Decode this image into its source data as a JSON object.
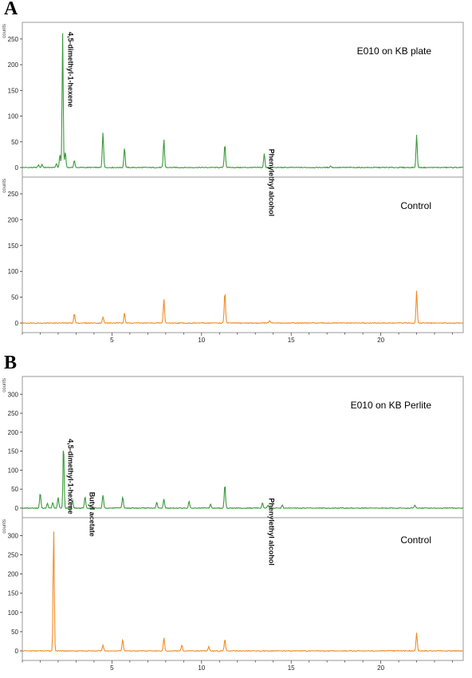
{
  "figure": {
    "panel_a_label": "A",
    "panel_b_label": "B",
    "y_unit": "counts",
    "axis_color": "#333333",
    "sample_color": "#3a9a3a",
    "control_color": "#f08c28"
  },
  "chart_data": [
    {
      "type": "line",
      "panel": "A",
      "label": "E010 on KB plate",
      "color": "#3a9a3a",
      "ylim": [
        0,
        270
      ],
      "yticks": [
        0,
        50,
        100,
        150,
        200,
        250
      ],
      "xlim": [
        0,
        24.6
      ],
      "xticks": [
        5,
        10,
        15,
        20
      ],
      "baseline": 0,
      "peaks": [
        {
          "x": 0.9,
          "y": 5
        },
        {
          "x": 1.1,
          "y": 6
        },
        {
          "x": 1.9,
          "y": 8
        },
        {
          "x": 2.1,
          "y": 25
        },
        {
          "x": 2.25,
          "y": 262
        },
        {
          "x": 2.4,
          "y": 30
        },
        {
          "x": 2.9,
          "y": 14
        },
        {
          "x": 4.5,
          "y": 68
        },
        {
          "x": 5.7,
          "y": 38
        },
        {
          "x": 7.9,
          "y": 55
        },
        {
          "x": 11.3,
          "y": 45
        },
        {
          "x": 13.5,
          "y": 27
        },
        {
          "x": 17.2,
          "y": 3
        },
        {
          "x": 22.0,
          "y": 63
        }
      ],
      "annotations": [
        {
          "text": "4,5-dimethyl-1-hexene",
          "x": 2.3
        },
        {
          "text": "Phenylethyl alcohol",
          "x": 13.5
        }
      ]
    },
    {
      "type": "line",
      "panel": "A",
      "label": "Control",
      "color": "#f08c28",
      "ylim": [
        0,
        270
      ],
      "yticks": [
        0,
        50,
        100,
        150,
        200,
        250
      ],
      "xlim": [
        0,
        24.6
      ],
      "xticks": [
        5,
        10,
        15,
        20
      ],
      "baseline": 0,
      "peaks": [
        {
          "x": 2.9,
          "y": 18
        },
        {
          "x": 4.5,
          "y": 12
        },
        {
          "x": 5.7,
          "y": 20
        },
        {
          "x": 7.9,
          "y": 47
        },
        {
          "x": 11.3,
          "y": 60
        },
        {
          "x": 13.8,
          "y": 5
        },
        {
          "x": 22.0,
          "y": 62
        }
      ],
      "annotations": []
    },
    {
      "type": "line",
      "panel": "B",
      "label": "E010 on KB Perlite",
      "color": "#3a9a3a",
      "ylim": [
        0,
        330
      ],
      "yticks": [
        0,
        50,
        100,
        150,
        200,
        250,
        300
      ],
      "xlim": [
        0,
        24.6
      ],
      "xticks": [
        5,
        10,
        15,
        20
      ],
      "baseline": 0,
      "peaks": [
        {
          "x": 1.0,
          "y": 40
        },
        {
          "x": 1.4,
          "y": 12
        },
        {
          "x": 1.7,
          "y": 15
        },
        {
          "x": 2.0,
          "y": 28
        },
        {
          "x": 2.3,
          "y": 170
        },
        {
          "x": 2.8,
          "y": 22
        },
        {
          "x": 3.5,
          "y": 30
        },
        {
          "x": 4.5,
          "y": 35
        },
        {
          "x": 5.6,
          "y": 30
        },
        {
          "x": 7.5,
          "y": 15
        },
        {
          "x": 7.9,
          "y": 25
        },
        {
          "x": 9.3,
          "y": 18
        },
        {
          "x": 10.5,
          "y": 10
        },
        {
          "x": 11.3,
          "y": 62
        },
        {
          "x": 13.4,
          "y": 14
        },
        {
          "x": 13.7,
          "y": 8
        },
        {
          "x": 14.5,
          "y": 8
        },
        {
          "x": 21.9,
          "y": 8
        }
      ],
      "annotations": [
        {
          "text": "4,5-dimethyl-1-hexene",
          "x": 2.3
        },
        {
          "text": "Butyl acetate",
          "x": 3.5
        },
        {
          "text": "Phenylethyl alcohol",
          "x": 13.5
        }
      ]
    },
    {
      "type": "line",
      "panel": "B",
      "label": "Control",
      "color": "#f08c28",
      "ylim": [
        0,
        330
      ],
      "yticks": [
        0,
        50,
        100,
        150,
        200,
        250,
        300
      ],
      "xlim": [
        0,
        24.6
      ],
      "xticks": [
        5,
        10,
        15,
        20
      ],
      "baseline": 0,
      "peaks": [
        {
          "x": 1.75,
          "y": 318
        },
        {
          "x": 4.5,
          "y": 15
        },
        {
          "x": 5.6,
          "y": 30
        },
        {
          "x": 7.9,
          "y": 35
        },
        {
          "x": 8.9,
          "y": 15
        },
        {
          "x": 10.4,
          "y": 12
        },
        {
          "x": 11.3,
          "y": 30
        },
        {
          "x": 22.0,
          "y": 48
        }
      ],
      "annotations": []
    }
  ]
}
